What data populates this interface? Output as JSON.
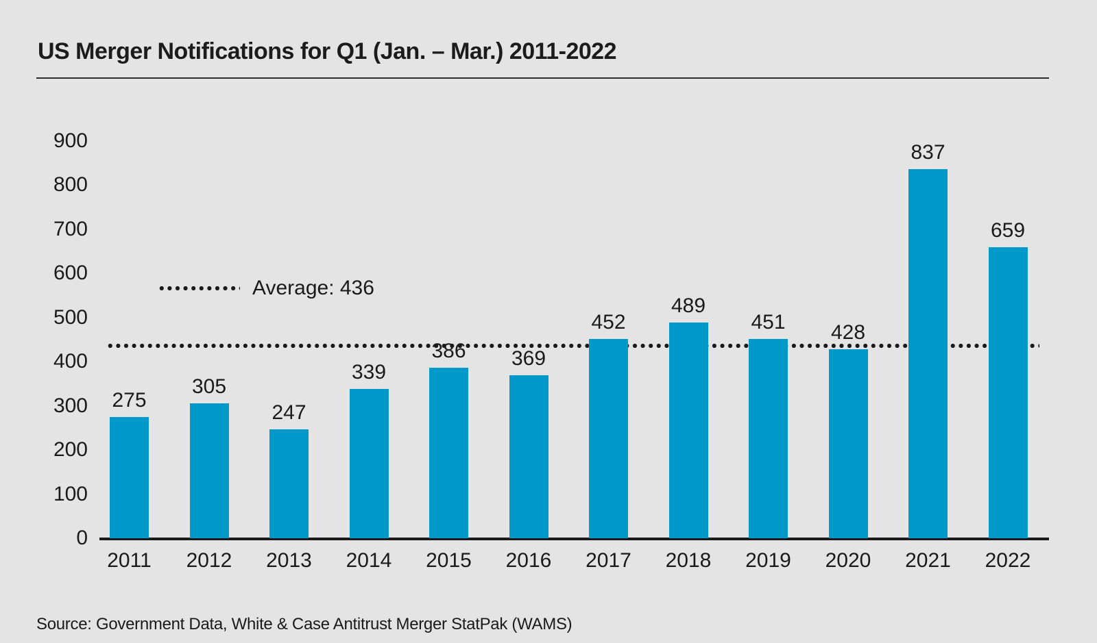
{
  "header": {
    "title": "US Merger Notifications for Q1 (Jan. – Mar.) 2011-2022"
  },
  "footer": {
    "source": "Source: Government Data, White & Case Antitrust Merger StatPak (WAMS)"
  },
  "chart_data": {
    "type": "bar",
    "title": "US Merger Notifications for Q1 (Jan. – Mar.) 2011-2022",
    "categories": [
      "2011",
      "2012",
      "2013",
      "2014",
      "2015",
      "2016",
      "2017",
      "2018",
      "2019",
      "2020",
      "2021",
      "2022"
    ],
    "values": [
      275,
      305,
      247,
      339,
      386,
      369,
      452,
      489,
      451,
      428,
      837,
      659
    ],
    "average": 436,
    "average_label": "Average: 436",
    "xlabel": "",
    "ylabel": "",
    "ylim": [
      0,
      900
    ],
    "yticks": [
      0,
      100,
      200,
      300,
      400,
      500,
      600,
      700,
      800,
      900
    ],
    "grid": false,
    "legend_position": "inside-top-left",
    "colors": {
      "bar": "#0099c9",
      "background": "#e4e4e5",
      "text": "#1a1a1a",
      "axis": "#1a1a1a",
      "average_line": "#1a1a1a"
    },
    "source": "Source: Government Data, White & Case Antitrust Merger StatPak (WAMS)"
  }
}
